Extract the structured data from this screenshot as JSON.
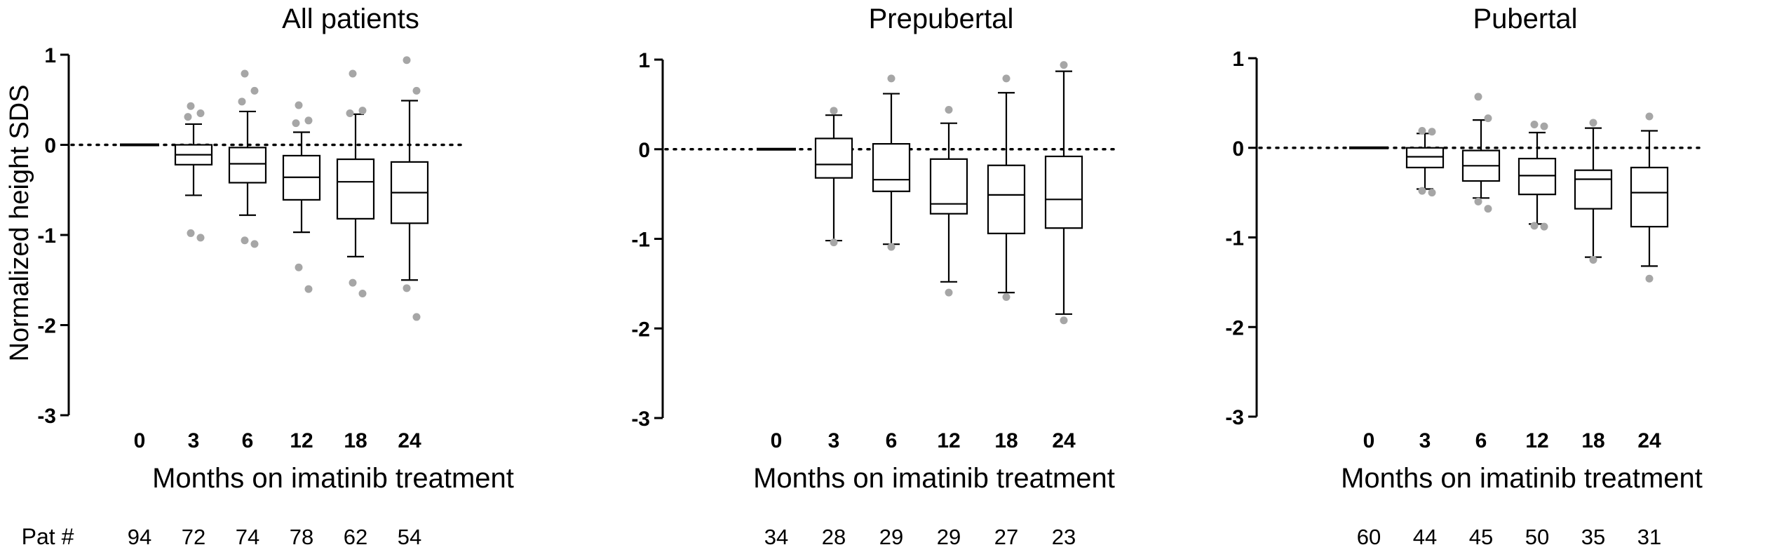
{
  "figure": {
    "ylabel": "Normalized height SDS",
    "xlabel": "Months on imatinib treatment",
    "pat_label": "Pat #"
  },
  "chart_data": [
    {
      "type": "box",
      "title": "All patients",
      "categories": [
        "0",
        "3",
        "6",
        "12",
        "18",
        "24"
      ],
      "ylim": [
        -3,
        1
      ],
      "yticks": [
        1,
        0,
        -1,
        -2,
        -3
      ],
      "ytick_labels": [
        "1",
        "0",
        "-1",
        "-2",
        "-3"
      ],
      "reference_line": 0,
      "patient_counts": [
        "94",
        "72",
        "74",
        "78",
        "62",
        "54"
      ],
      "boxes": [
        {
          "whislo": 0,
          "q1": 0,
          "med": 0,
          "q3": 0,
          "whishi": 0,
          "outliers": []
        },
        {
          "whislo": -0.56,
          "q1": -0.22,
          "med": -0.11,
          "q3": 0.0,
          "whishi": 0.23,
          "outliers": [
            0.43,
            0.35,
            0.31,
            -0.98,
            -1.03
          ]
        },
        {
          "whislo": -0.78,
          "q1": -0.42,
          "med": -0.21,
          "q3": -0.03,
          "whishi": 0.37,
          "outliers": [
            0.79,
            0.6,
            0.48,
            -1.06,
            -1.1
          ]
        },
        {
          "whislo": -0.97,
          "q1": -0.61,
          "med": -0.36,
          "q3": -0.12,
          "whishi": 0.14,
          "outliers": [
            0.44,
            0.27,
            0.24,
            -1.36,
            -1.6
          ]
        },
        {
          "whislo": -1.24,
          "q1": -0.82,
          "med": -0.41,
          "q3": -0.16,
          "whishi": 0.34,
          "outliers": [
            0.79,
            0.38,
            0.35,
            -1.53,
            -1.65
          ]
        },
        {
          "whislo": -1.5,
          "q1": -0.87,
          "med": -0.53,
          "q3": -0.19,
          "whishi": 0.49,
          "outliers": [
            0.94,
            0.6,
            -1.59,
            -1.91
          ]
        }
      ]
    },
    {
      "type": "box",
      "title": "Prepubertal",
      "categories": [
        "0",
        "3",
        "6",
        "12",
        "18",
        "24"
      ],
      "ylim": [
        -3,
        1
      ],
      "yticks": [
        1,
        0,
        -1,
        -2,
        -3
      ],
      "ytick_labels": [
        "1",
        "0",
        "-1",
        "-2",
        "-3"
      ],
      "reference_line": 0,
      "patient_counts": [
        "34",
        "28",
        "29",
        "29",
        "27",
        "23"
      ],
      "boxes": [
        {
          "whislo": 0,
          "q1": 0,
          "med": 0,
          "q3": 0,
          "whishi": 0,
          "outliers": []
        },
        {
          "whislo": -1.02,
          "q1": -0.32,
          "med": -0.17,
          "q3": 0.12,
          "whishi": 0.38,
          "outliers": [
            0.43,
            -1.04
          ]
        },
        {
          "whislo": -1.06,
          "q1": -0.47,
          "med": -0.34,
          "q3": 0.06,
          "whishi": 0.62,
          "outliers": [
            0.79,
            -1.09
          ]
        },
        {
          "whislo": -1.48,
          "q1": -0.72,
          "med": -0.61,
          "q3": -0.11,
          "whishi": 0.29,
          "outliers": [
            0.44,
            -1.6
          ]
        },
        {
          "whislo": -1.6,
          "q1": -0.94,
          "med": -0.51,
          "q3": -0.18,
          "whishi": 0.63,
          "outliers": [
            0.79,
            -1.65
          ]
        },
        {
          "whislo": -1.84,
          "q1": -0.88,
          "med": -0.56,
          "q3": -0.08,
          "whishi": 0.87,
          "outliers": [
            0.94,
            -1.91
          ]
        }
      ]
    },
    {
      "type": "box",
      "title": "Pubertal",
      "categories": [
        "0",
        "3",
        "6",
        "12",
        "18",
        "24"
      ],
      "ylim": [
        -3,
        1
      ],
      "yticks": [
        1,
        0,
        -1,
        -2,
        -3
      ],
      "ytick_labels": [
        "1",
        "0",
        "-1",
        "-2",
        "-3"
      ],
      "reference_line": 0,
      "patient_counts": [
        "60",
        "44",
        "45",
        "50",
        "35",
        "31"
      ],
      "boxes": [
        {
          "whislo": 0,
          "q1": 0,
          "med": 0,
          "q3": 0,
          "whishi": 0,
          "outliers": []
        },
        {
          "whislo": -0.46,
          "q1": -0.22,
          "med": -0.1,
          "q3": 0.0,
          "whishi": 0.16,
          "outliers": [
            0.19,
            0.18,
            -0.48,
            -0.5
          ]
        },
        {
          "whislo": -0.56,
          "q1": -0.37,
          "med": -0.2,
          "q3": -0.03,
          "whishi": 0.31,
          "outliers": [
            0.57,
            0.33,
            -0.6,
            -0.68
          ]
        },
        {
          "whislo": -0.85,
          "q1": -0.52,
          "med": -0.31,
          "q3": -0.12,
          "whishi": 0.17,
          "outliers": [
            0.26,
            0.24,
            -0.87,
            -0.88
          ]
        },
        {
          "whislo": -1.22,
          "q1": -0.68,
          "med": -0.35,
          "q3": -0.25,
          "whishi": 0.22,
          "outliers": [
            0.28,
            -1.25
          ]
        },
        {
          "whislo": -1.32,
          "q1": -0.88,
          "med": -0.5,
          "q3": -0.22,
          "whishi": 0.19,
          "outliers": [
            0.35,
            -1.46
          ]
        }
      ]
    }
  ]
}
